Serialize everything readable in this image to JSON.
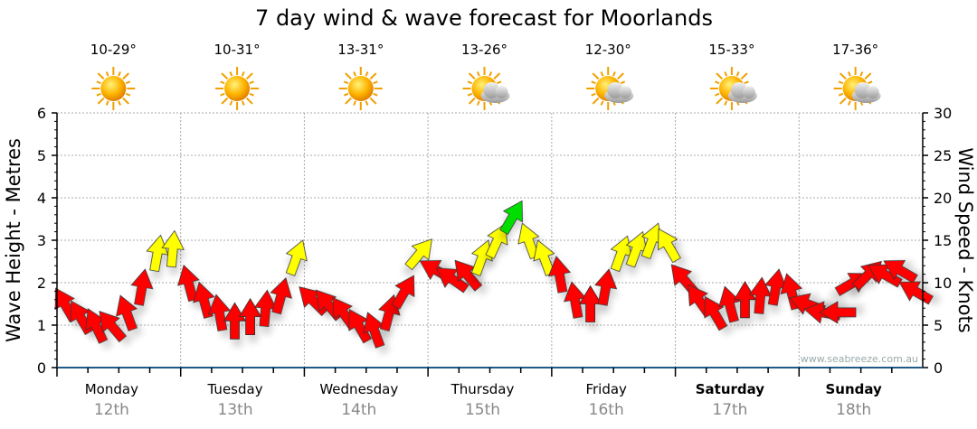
{
  "chart_data": {
    "type": "scatter",
    "title": "7 day wind & wave forecast for Moorlands",
    "ylabel_left": "Wave Height - Metres",
    "ylabel_right": "Wind Speed - Knots",
    "ylim_left": [
      0,
      6
    ],
    "ylim_right": [
      0,
      30
    ],
    "left_ticks": [
      "0",
      "1",
      "2",
      "3",
      "4",
      "5",
      "6"
    ],
    "right_ticks": [
      "0",
      "5",
      "10",
      "15",
      "20",
      "25",
      "30"
    ],
    "grid": true,
    "credit": "www.seabreeze.com.au",
    "days": [
      {
        "name": "Monday",
        "date": "12th",
        "temp": "10-29°",
        "icon": "sunny-icon",
        "bold": false
      },
      {
        "name": "Tuesday",
        "date": "13th",
        "temp": "10-31°",
        "icon": "sunny-icon",
        "bold": false
      },
      {
        "name": "Wednesday",
        "date": "14th",
        "temp": "13-31°",
        "icon": "sunny-icon",
        "bold": false
      },
      {
        "name": "Thursday",
        "date": "15th",
        "temp": "13-26°",
        "icon": "partly-cloudy-icon",
        "bold": false
      },
      {
        "name": "Friday",
        "date": "16th",
        "temp": "12-30°",
        "icon": "partly-cloudy-icon",
        "bold": false
      },
      {
        "name": "Saturday",
        "date": "17th",
        "temp": "15-33°",
        "icon": "partly-cloudy-icon",
        "bold": true
      },
      {
        "name": "Sunday",
        "date": "18th",
        "temp": "17-36°",
        "icon": "partly-cloudy-icon",
        "bold": true
      }
    ],
    "wind_interval_hours": 3,
    "wind_speed_knots": [
      7.5,
      6,
      5,
      5,
      6.5,
      9.5,
      13.5,
      14,
      10,
      8,
      6.5,
      5.5,
      6,
      7,
      8.5,
      13,
      8,
      7.5,
      6.5,
      5,
      4.5,
      6.5,
      9,
      13.5,
      11.5,
      10.5,
      11,
      13,
      15,
      17.8,
      15,
      13,
      11,
      8,
      7.5,
      9.5,
      13.5,
      14,
      15,
      14.5,
      10.5,
      8,
      6.5,
      7.5,
      8,
      8.5,
      9.5,
      9,
      7.5,
      6.5,
      6.5,
      10,
      11,
      11,
      11.5,
      9
    ],
    "wind_arrow_bearing_deg": [
      330,
      330,
      335,
      320,
      340,
      10,
      10,
      5,
      345,
      345,
      350,
      0,
      0,
      5,
      15,
      20,
      315,
      320,
      325,
      330,
      340,
      15,
      30,
      40,
      300,
      305,
      320,
      20,
      25,
      30,
      340,
      340,
      350,
      350,
      0,
      10,
      20,
      20,
      20,
      330,
      320,
      325,
      330,
      345,
      0,
      5,
      10,
      345,
      290,
      280,
      270,
      60,
      45,
      300,
      300,
      300
    ],
    "color_thresholds": [
      {
        "max": 12.5,
        "color": "#ff0000"
      },
      {
        "max": 17.5,
        "color": "#ffff00"
      },
      {
        "max": 99,
        "color": "#00dd00"
      }
    ]
  }
}
